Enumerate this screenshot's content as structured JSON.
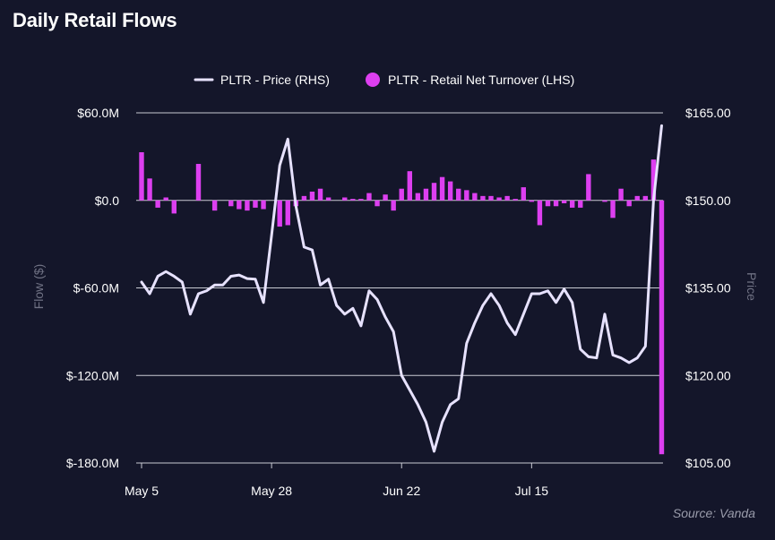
{
  "chart_data": {
    "type": "bar+line",
    "title": "Daily Retail Flows",
    "source": "Source: Vanda",
    "colors": {
      "background": "#14162a",
      "bars": "#dd3ff0",
      "line": "#e7e2ff",
      "grid": "#c9cad3",
      "axis_title": "#707284"
    },
    "legend": {
      "placement": "top-center",
      "items": [
        {
          "label": "PLTR - Price (RHS)",
          "symbol": "line"
        },
        {
          "label": "PLTR - Retail Net Turnover (LHS)",
          "symbol": "circle"
        }
      ]
    },
    "left_axis": {
      "title": "Flow ($)",
      "range": [
        -180,
        60
      ],
      "ticks": [
        60,
        0,
        -60,
        -120,
        -180
      ],
      "tick_labels": [
        "$60.0M",
        "$0.0",
        "$-60.0M",
        "$-120.0M",
        "$-180.0M"
      ]
    },
    "right_axis": {
      "title": "Price",
      "range": [
        105,
        165
      ],
      "ticks": [
        165,
        150,
        135,
        120,
        105
      ],
      "tick_labels": [
        "$165.00",
        "$150.00",
        "$135.00",
        "$120.00",
        "$105.00"
      ]
    },
    "x_axis": {
      "tick_labels": [
        "May 5",
        "May 28",
        "Jun 22",
        "Jul 15"
      ],
      "tick_indices": [
        0,
        16,
        32,
        48
      ]
    },
    "series": [
      {
        "name": "PLTR - Retail Net Turnover (LHS)",
        "type": "bar",
        "axis": "left",
        "unit": "$M",
        "values": [
          33,
          15,
          -5,
          2,
          -9,
          0,
          0,
          25,
          0,
          -7,
          0,
          -4,
          -6,
          -7,
          -5,
          -6,
          0,
          -18,
          -17,
          -4,
          3,
          6,
          8,
          2,
          0,
          2,
          1,
          1,
          5,
          -4,
          4,
          -7,
          8,
          20,
          5,
          8,
          12,
          16,
          13,
          8,
          7,
          5,
          3,
          3,
          2,
          3,
          1,
          9,
          -1,
          -17,
          -4,
          -4,
          -2,
          -5,
          -5,
          18,
          0,
          -1,
          -12,
          8,
          -4,
          3,
          3,
          28,
          -174
        ]
      },
      {
        "name": "PLTR - Price (RHS)",
        "type": "line",
        "axis": "right",
        "unit": "$",
        "values": [
          136,
          134,
          137,
          137.8,
          137,
          136,
          130.5,
          134,
          134.5,
          135.5,
          135.5,
          137,
          137.2,
          136.6,
          136.5,
          132.5,
          144,
          156,
          160.5,
          149,
          142,
          141.5,
          135.5,
          136.5,
          132,
          130.5,
          131.5,
          128.5,
          134.5,
          133,
          130,
          127.5,
          120,
          117.5,
          115,
          112,
          107,
          112,
          115,
          116,
          125.5,
          129,
          132,
          134,
          132,
          129,
          127,
          130.5,
          134,
          134,
          134.5,
          132.5,
          134.8,
          132.5,
          124.5,
          123.2,
          123,
          130.5,
          123.5,
          123,
          122.2,
          123,
          125,
          150,
          162.8
        ]
      }
    ]
  }
}
